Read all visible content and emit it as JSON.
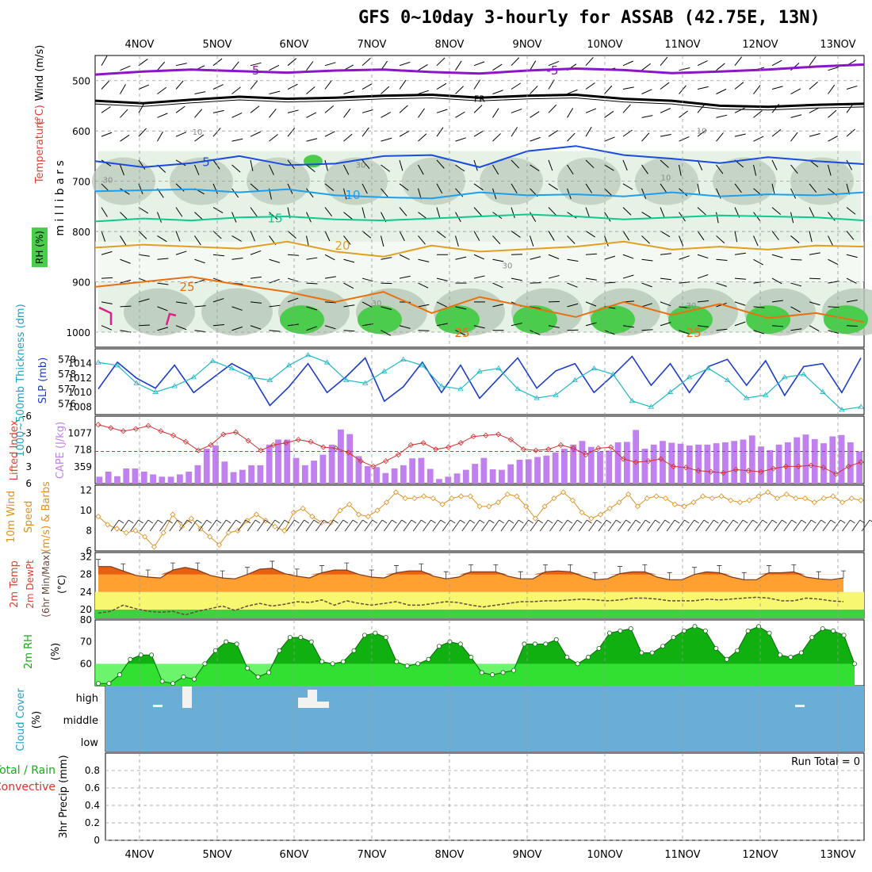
{
  "title": "GFS 0~10day 3-hourly for ASSAB (42.75E, 13N)",
  "colors": {
    "temp_5": "#8a16c8",
    "fr": "#000000",
    "temp_m5_blue": "#1a4be0",
    "temp_10": "#1aa0f0",
    "temp_15": "#10c890",
    "temp_20": "#e0a020",
    "temp_25": "#e87010",
    "rh_light": "#e6f2e6",
    "rh_mid": "#b8c8b8",
    "rh_dark": "#4ccc4c",
    "slp": "#1a3ccc",
    "thickness": "#20b8c8",
    "cape": "#c080f0",
    "lifted": "#d03030",
    "wind": "#e09020",
    "cloud": "#6aaed6",
    "rh2m_dark": "#10b010",
    "rh2m_light": "#3cf03c",
    "temp_band_hot": "#ffa030",
    "temp_band_warm": "#f8f870",
    "temp_band_cool": "#40d040"
  },
  "chart_data": [
    {
      "type": "line",
      "panel": "upper_air",
      "ylabel": "Wind (m/s)",
      "ylabel_parts": [
        "Temperature",
        "(°C)",
        "Wind (m/s)"
      ],
      "ylabel2": "m i l l i b a r s",
      "rh_label": "RH (%)",
      "x_labels": [
        "4NOV",
        "5NOV",
        "6NOV",
        "7NOV",
        "8NOV",
        "9NOV",
        "10NOV",
        "11NOV",
        "12NOV",
        "13NOV"
      ],
      "y_ticks": [
        500,
        600,
        700,
        800,
        900,
        1000
      ],
      "ylim": [
        450,
        1030
      ],
      "isotherm_labels": [
        "-5",
        "-5",
        "FR",
        "5",
        "10",
        "15",
        "20",
        "25",
        "25",
        "25",
        "30",
        "30",
        "30",
        "30",
        "10",
        "10",
        "10",
        "30"
      ],
      "series": [
        {
          "name": "-5",
          "pressure": [
            488,
            482,
            478,
            481,
            484,
            480,
            478,
            483,
            486,
            480,
            476,
            479,
            485,
            482,
            478,
            472,
            468
          ]
        },
        {
          "name": "FR",
          "pressure": [
            540,
            545,
            538,
            532,
            536,
            534,
            530,
            528,
            534,
            530,
            528,
            536,
            540,
            550,
            552,
            548,
            546
          ]
        },
        {
          "name": "5",
          "pressure": [
            660,
            672,
            664,
            650,
            668,
            665,
            650,
            648,
            672,
            640,
            630,
            648,
            655,
            664,
            652,
            660,
            666
          ]
        },
        {
          "name": "10",
          "pressure": [
            720,
            718,
            716,
            722,
            716,
            728,
            732,
            734,
            722,
            728,
            726,
            730,
            722,
            730,
            726,
            728,
            722
          ]
        },
        {
          "name": "15",
          "pressure": [
            780,
            774,
            778,
            772,
            770,
            776,
            778,
            774,
            770,
            766,
            770,
            776,
            772,
            768,
            770,
            772,
            778
          ]
        },
        {
          "name": "20",
          "pressure": [
            832,
            826,
            830,
            834,
            820,
            840,
            850,
            828,
            840,
            835,
            830,
            820,
            836,
            830,
            836,
            828,
            830
          ]
        },
        {
          "name": "25",
          "pressure": [
            910,
            900,
            890,
            906,
            920,
            940,
            920,
            962,
            930,
            950,
            970,
            940,
            966,
            944,
            972,
            962,
            980
          ]
        }
      ]
    },
    {
      "type": "line",
      "panel": "slp_thickness",
      "ylabel": "SLP (mb)",
      "ylabel2": "1000~500mb Thickness (dm)",
      "y_ticks_left": [
        576,
        577,
        578,
        579
      ],
      "y_ticks_right": [
        1008,
        1010,
        1012,
        1014
      ],
      "series": [
        {
          "name": "SLP",
          "values": [
            1010.5,
            1014.2,
            1012.0,
            1010.6,
            1013.8,
            1010.0,
            1012.0,
            1014.0,
            1012.6,
            1008.2,
            1010.8,
            1014.0,
            1010.0,
            1012.2,
            1014.8,
            1008.8,
            1010.8,
            1014.2,
            1010.0,
            1013.8,
            1009.2,
            1012.0,
            1014.8,
            1010.6,
            1013.0,
            1014.0,
            1010.0,
            1012.4,
            1015.0,
            1011.0,
            1014.0,
            1010.0,
            1013.6,
            1014.6,
            1011.0,
            1014.4,
            1009.6,
            1013.6,
            1014.0,
            1010.0,
            1014.8
          ]
        },
        {
          "name": "Thickness",
          "values": [
            578.8,
            578.6,
            577.4,
            576.8,
            577.2,
            577.8,
            578.9,
            578.4,
            577.8,
            577.6,
            578.6,
            579.3,
            578.8,
            577.6,
            577.4,
            578.2,
            579.0,
            578.6,
            577.2,
            577.0,
            578.2,
            578.4,
            577.0,
            576.4,
            576.6,
            577.6,
            578.4,
            578.0,
            576.2,
            575.8,
            576.8,
            577.8,
            578.4,
            577.6,
            576.4,
            576.6,
            577.8,
            578.0,
            576.8,
            575.6,
            575.8
          ]
        }
      ]
    },
    {
      "type": "bar",
      "panel": "cape_lifted",
      "ylabel": "CAPE (J/kg)",
      "ylabel2": "Lifted Index",
      "y_ticks_left": [
        "6",
        "3",
        "0",
        "-3",
        "-6"
      ],
      "y_ticks_right": [
        "359",
        "718",
        "1077"
      ],
      "ylim": [
        0,
        1436
      ],
      "series": [
        {
          "name": "CAPE",
          "values": [
            150,
            260,
            160,
            330,
            330,
            260,
            200,
            150,
            150,
            200,
            260,
            400,
            760,
            830,
            480,
            250,
            300,
            400,
            400,
            850,
            960,
            960,
            560,
            400,
            500,
            630,
            850,
            1180,
            1080,
            600,
            380,
            360,
            230,
            330,
            400,
            550,
            560,
            320,
            100,
            150,
            220,
            300,
            430,
            560,
            310,
            300,
            420,
            520,
            530,
            580,
            610,
            680,
            760,
            850,
            930,
            800,
            700,
            720,
            900,
            910,
            1170,
            760,
            850,
            930,
            890,
            870,
            830,
            850,
            850,
            880,
            900,
            930,
            960,
            1050,
            810,
            730,
            850,
            900,
            1010,
            1070,
            970,
            880,
            1030,
            1060,
            900,
            700
          ]
        },
        {
          "name": "Lifted Index",
          "values": [
            5.0,
            4.4,
            3.8,
            4.2,
            4.8,
            3.8,
            3.0,
            1.8,
            0.2,
            1.2,
            3.2,
            3.6,
            2.0,
            0.2,
            1.2,
            1.6,
            2.2,
            1.8,
            0.8,
            0.6,
            -0.2,
            -1.8,
            -2.8,
            -1.8,
            -0.6,
            1.2,
            1.6,
            0.4,
            0.8,
            1.6,
            2.8,
            3.0,
            3.2,
            2.2,
            0.4,
            0.2,
            0.4,
            1.2,
            0.6,
            -0.6,
            0.6,
            0.8,
            -1.4,
            -2.0,
            -1.8,
            -1.4,
            -2.8,
            -3.0,
            -3.6,
            -3.8,
            -4.0,
            -3.4,
            -3.6,
            -3.8,
            -3.2,
            -2.8,
            -2.8,
            -2.6,
            -3.0,
            -4.2,
            -2.8,
            -2.0
          ]
        }
      ]
    },
    {
      "type": "line",
      "panel": "wind_10m",
      "ylabel": "10m Wind Speed (m/s) & Barbs",
      "ylabel_parts": [
        "10m Wind",
        "Speed",
        "(m/s) & Barbs"
      ],
      "y_ticks": [
        "6",
        "8",
        "10",
        "12"
      ],
      "ylim": [
        6,
        12.5
      ],
      "values": [
        9.4,
        8.6,
        8.2,
        7.8,
        8.0,
        7.4,
        6.4,
        7.8,
        9.6,
        8.4,
        9.2,
        8.2,
        7.4,
        6.6,
        7.8,
        8.0,
        9.0,
        9.6,
        9.0,
        8.4,
        8.0,
        9.8,
        10.2,
        9.4,
        8.8,
        8.8,
        10.0,
        10.6,
        9.6,
        9.4,
        10.0,
        10.8,
        11.8,
        11.2,
        11.2,
        11.4,
        11.2,
        10.6,
        11.2,
        11.4,
        11.4,
        10.4,
        10.4,
        10.8,
        11.6,
        11.4,
        10.4,
        9.2,
        10.4,
        11.2,
        11.8,
        11.0,
        9.8,
        9.2,
        9.6,
        10.2,
        10.8,
        11.6,
        10.4,
        11.2,
        11.4,
        11.2,
        10.6,
        10.4,
        10.8,
        11.4,
        11.2,
        11.4,
        11.0,
        10.8,
        11.0,
        11.4,
        11.8,
        11.2,
        11.6,
        11.2,
        11.2,
        10.8,
        11.2,
        11.4,
        10.8,
        11.2,
        11.0
      ]
    },
    {
      "type": "area",
      "panel": "temp_2m",
      "ylabel": "2m Temp 2m DewPt (6hr Min/Max) (°C)",
      "ylabel_parts": [
        "2m Temp",
        "2m DewPt",
        "(6hr Min/Max)",
        "(°C)"
      ],
      "y_ticks": [
        "20",
        "24",
        "28",
        "32"
      ],
      "ylim": [
        18,
        33
      ],
      "series": [
        {
          "name": "Temp",
          "values": [
            29.8,
            29.8,
            28.8,
            27.8,
            27.4,
            27.2,
            29.0,
            29.6,
            29.0,
            27.8,
            27.2,
            27.0,
            28.0,
            29.2,
            29.4,
            28.2,
            27.6,
            27.2,
            28.4,
            29.0,
            29.0,
            28.0,
            27.4,
            27.2,
            28.4,
            28.8,
            28.8,
            27.6,
            27.0,
            27.4,
            28.6,
            28.6,
            28.6,
            27.6,
            27.0,
            27.0,
            28.6,
            28.8,
            28.6,
            27.6,
            26.8,
            27.0,
            28.2,
            28.6,
            28.6,
            27.4,
            26.8,
            26.8,
            28.0,
            28.6,
            28.4,
            27.4,
            26.8,
            26.8,
            28.4,
            28.4,
            28.6,
            27.4,
            27.0,
            26.8,
            27.2
          ]
        },
        {
          "name": "DewPt",
          "values": [
            19.2,
            19.6,
            21.0,
            20.2,
            19.6,
            19.4,
            19.6,
            18.8,
            19.6,
            20.2,
            20.8,
            19.8,
            20.8,
            21.4,
            20.8,
            21.2,
            21.8,
            21.6,
            22.2,
            21.0,
            22.0,
            21.4,
            21.0,
            21.4,
            21.8,
            21.0,
            21.0,
            21.4,
            21.8,
            21.6,
            21.0,
            20.6,
            21.0,
            21.4,
            21.8,
            21.8,
            22.0,
            22.0,
            22.2,
            22.4,
            22.2,
            22.0,
            22.2,
            22.6,
            22.6,
            22.4,
            22.0,
            22.0,
            22.0,
            22.4,
            22.2,
            22.4,
            22.6,
            22.8,
            22.6,
            22.0,
            22.0,
            22.6,
            22.4,
            22.0,
            21.8
          ]
        }
      ]
    },
    {
      "type": "area",
      "panel": "rh_2m",
      "ylabel": "2m RH (%)",
      "ylabel_parts": [
        "2m RH",
        "(%)"
      ],
      "y_ticks": [
        "60",
        "70",
        "80"
      ],
      "ylim": [
        50,
        80
      ],
      "values": [
        51,
        51,
        55,
        62,
        64,
        64,
        52,
        51,
        54,
        53,
        60,
        66,
        70,
        69,
        58,
        54,
        56,
        66,
        72,
        72,
        70,
        61,
        60,
        61,
        66,
        73,
        74,
        72,
        61,
        59,
        60,
        62,
        68,
        70,
        69,
        63,
        56,
        55,
        56,
        57,
        69,
        69,
        69,
        71,
        63,
        60,
        63,
        67,
        74,
        75,
        76,
        65,
        65,
        68,
        72,
        75,
        77,
        75,
        67,
        62,
        66,
        75,
        77,
        74,
        64,
        63,
        65,
        72,
        76,
        75,
        73,
        60
      ]
    },
    {
      "type": "heatmap",
      "panel": "cloud_cover",
      "ylabel": "Cloud Cover (%)",
      "ylabel_parts": [
        "Cloud Cover",
        "(%)"
      ],
      "levels": [
        "high",
        "middle",
        "low"
      ]
    },
    {
      "type": "bar",
      "panel": "precip",
      "ylabel": "3hr Precip (mm)",
      "ylabel_parts": [
        "3hr Precip (mm)"
      ],
      "legend": [
        "Total / Rain",
        "Convective"
      ],
      "y_ticks": [
        "0",
        "0.2",
        "0.4",
        "0.6",
        "0.8"
      ],
      "ylim": [
        0,
        1
      ],
      "run_total": "Run Total = 0",
      "values": [
        0,
        0,
        0,
        0,
        0,
        0,
        0,
        0,
        0,
        0
      ]
    }
  ]
}
